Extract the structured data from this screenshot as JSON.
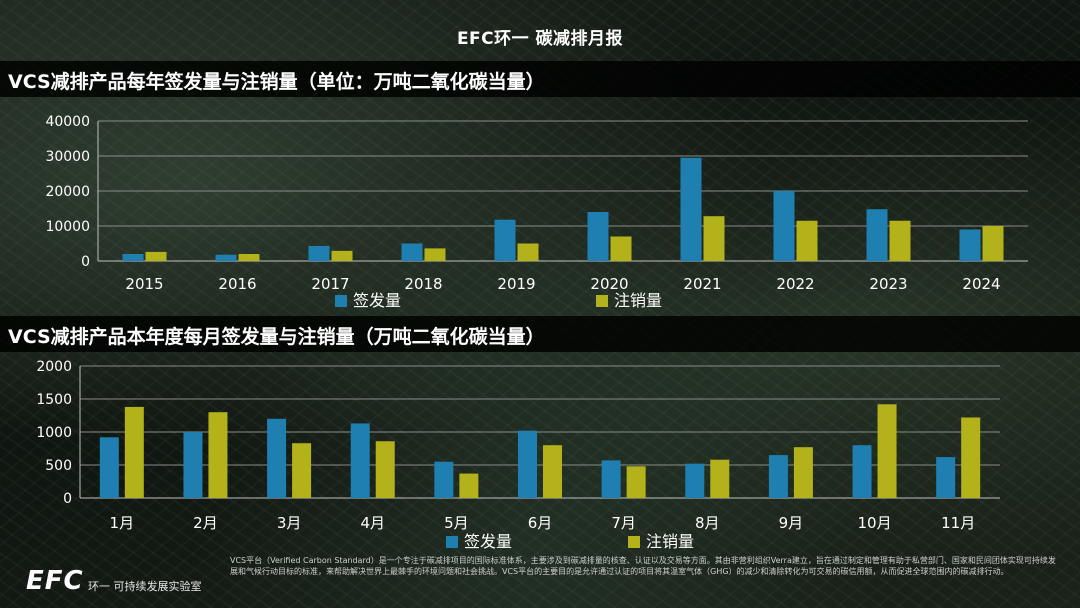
{
  "page_title": "EFC环一 碳减排月报",
  "section1_title": "VCS减排产品每年签发量与注销量（单位：万吨二氧化碳当量）",
  "section2_title": "VCS减排产品本年度每月签发量与注销量（万吨二氧化碳当量）",
  "colors": {
    "issued": "#1f7fb0",
    "retired": "#b3b21a"
  },
  "chart_data": [
    {
      "type": "bar",
      "categories": [
        "2015",
        "2016",
        "2017",
        "2018",
        "2019",
        "2020",
        "2021",
        "2022",
        "2023",
        "2024"
      ],
      "series": [
        {
          "name": "签发量",
          "values": [
            2000,
            1800,
            4300,
            5000,
            11800,
            14000,
            29500,
            20000,
            14800,
            9000
          ]
        },
        {
          "name": "注销量",
          "values": [
            2600,
            2000,
            2900,
            3600,
            5000,
            7000,
            12800,
            11500,
            11500,
            10000
          ]
        }
      ],
      "ylim": [
        0,
        40000
      ],
      "yticks": [
        0,
        10000,
        20000,
        30000,
        40000
      ],
      "legend": [
        "签发量",
        "注销量"
      ]
    },
    {
      "type": "bar",
      "categories": [
        "1月",
        "2月",
        "3月",
        "4月",
        "5月",
        "6月",
        "7月",
        "8月",
        "9月",
        "10月",
        "11月"
      ],
      "series": [
        {
          "name": "签发量",
          "values": [
            920,
            1000,
            1200,
            1130,
            550,
            1020,
            570,
            520,
            650,
            800,
            620
          ]
        },
        {
          "name": "注销量",
          "values": [
            1380,
            1300,
            830,
            860,
            370,
            800,
            480,
            580,
            770,
            1420,
            1220
          ]
        }
      ],
      "ylim": [
        0,
        2000
      ],
      "yticks": [
        0,
        500,
        1000,
        1500,
        2000
      ],
      "legend": [
        "签发量",
        "注销量"
      ]
    }
  ],
  "footer": {
    "logo": "EFC",
    "lab": "环一 可持续发展实验室",
    "note": "VCS平台（Verified Carbon Standard）是一个专注于碳减排项目的国际标准体系，主要涉及到碳减排量的核查、认证以及交易等方面。其由非营利组织Verra建立，旨在通过制定和管理有助于私营部门、国家和民间团体实现可持续发展和气候行动目标的标准，来帮助解决世界上最棘手的环境问题和社会挑战。VCS平台的主要目的是允许通过认证的项目将其温室气体（GHG）的减少和清除转化为可交易的碳信用额，从而促进全球范围内的碳减排行动。"
  }
}
